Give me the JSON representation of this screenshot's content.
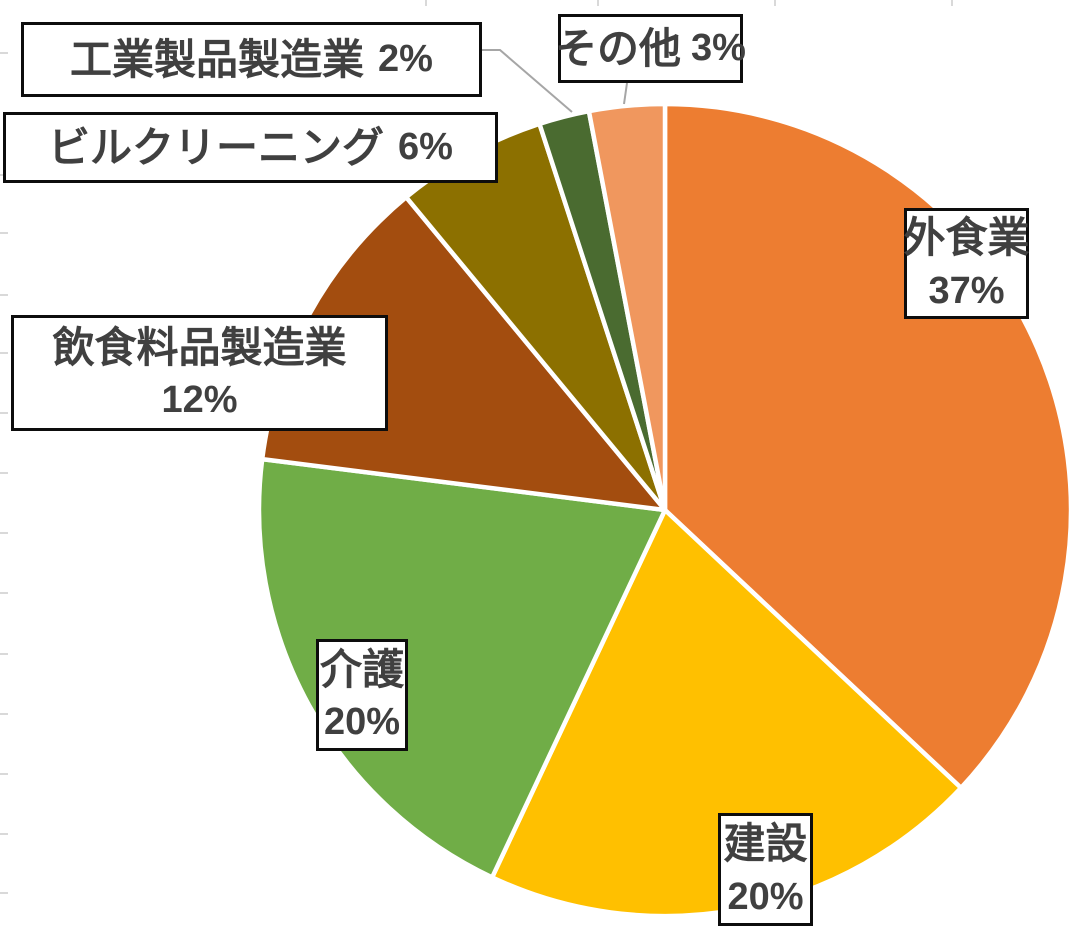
{
  "chart_data": {
    "type": "pie",
    "title": "",
    "legend": "none",
    "start_angle_deg": 0,
    "direction": "clockwise",
    "units": "percent",
    "slices": [
      {
        "id": "gaishoku",
        "label": "外食業",
        "value_pct": 37,
        "pct_text": "37%",
        "color": "#ED7D31"
      },
      {
        "id": "kensetsu",
        "label": "建設",
        "value_pct": 20,
        "pct_text": "20%",
        "color": "#FFC000"
      },
      {
        "id": "kaigo",
        "label": "介護",
        "value_pct": 20,
        "pct_text": "20%",
        "color": "#70AD47"
      },
      {
        "id": "inshokuryohin",
        "label": "飲食料品製造業",
        "value_pct": 12,
        "pct_text": "12%",
        "color": "#A34D0F"
      },
      {
        "id": "building-clean",
        "label": "ビルクリーニング",
        "value_pct": 6,
        "pct_text": "6%",
        "color": "#8C7000"
      },
      {
        "id": "kogyo-seihin",
        "label": "工業製品製造業",
        "value_pct": 2,
        "pct_text": "2%",
        "color": "#4A6B30"
      },
      {
        "id": "sonota",
        "label": "その他",
        "value_pct": 3,
        "pct_text": "3%",
        "color": "#F0975E"
      }
    ]
  },
  "styles": {
    "label_text_color": "#404040",
    "label_box_fill": "#FFFFFF",
    "label_box_border": "#0D0D0D",
    "slice_separator_color": "#FFFFFF",
    "leader_line_color": "#A6A6A6",
    "edge_tick_color": "#D9D9D9"
  }
}
